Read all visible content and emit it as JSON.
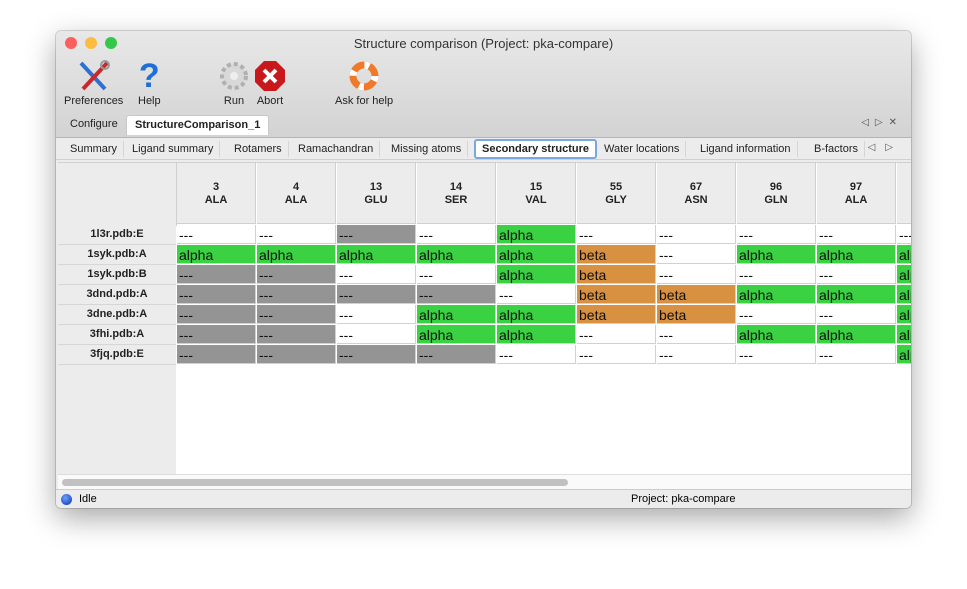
{
  "window": {
    "title": "Structure comparison (Project: pka-compare)"
  },
  "toolbar": [
    {
      "label": "Preferences",
      "icon": "tools-icon"
    },
    {
      "label": "Help",
      "icon": "help-icon"
    },
    {
      "label": "Run",
      "icon": "gear-icon"
    },
    {
      "label": "Abort",
      "icon": "abort-icon"
    },
    {
      "label": "Ask for help",
      "icon": "lifebuoy-icon"
    }
  ],
  "tabs": [
    "Configure",
    "StructureComparison_1"
  ],
  "active_tab": 1,
  "subtabs": [
    "Summary",
    "Ligand summary",
    "Rotamers",
    "Ramachandran",
    "Missing atoms",
    "Secondary structure",
    "Water locations",
    "Ligand information",
    "B-factors"
  ],
  "active_subtab": 5,
  "colors": {
    "alpha": "#3ad242",
    "beta": "#d89140",
    "missing": "#949494",
    "none": "#ffffff"
  },
  "table": {
    "columns": [
      [
        "3",
        "ALA"
      ],
      [
        "4",
        "ALA"
      ],
      [
        "13",
        "GLU"
      ],
      [
        "14",
        "SER"
      ],
      [
        "15",
        "VAL"
      ],
      [
        "55",
        "GLY"
      ],
      [
        "67",
        "ASN"
      ],
      [
        "96",
        "GLN"
      ],
      [
        "97",
        "ALA"
      ],
      [
        "",
        ""
      ]
    ],
    "rows": [
      {
        "name": "1l3r.pdb:E",
        "cells": [
          "w",
          "w",
          "g",
          "w",
          "alpha",
          "w",
          "w",
          "w",
          "w",
          "w"
        ]
      },
      {
        "name": "1syk.pdb:A",
        "cells": [
          "alpha",
          "alpha",
          "alpha",
          "alpha",
          "alpha",
          "beta",
          "w",
          "alpha",
          "alpha",
          "alpha"
        ]
      },
      {
        "name": "1syk.pdb:B",
        "cells": [
          "g",
          "g",
          "w",
          "w",
          "alpha",
          "beta",
          "w",
          "w",
          "w",
          "alpha"
        ]
      },
      {
        "name": "3dnd.pdb:A",
        "cells": [
          "g",
          "g",
          "g",
          "g",
          "w",
          "beta",
          "beta",
          "alpha",
          "alpha",
          "alpha"
        ]
      },
      {
        "name": "3dne.pdb:A",
        "cells": [
          "g",
          "g",
          "w",
          "alpha",
          "alpha",
          "beta",
          "beta",
          "w",
          "w",
          "alpha"
        ]
      },
      {
        "name": "3fhi.pdb:A",
        "cells": [
          "g",
          "g",
          "w",
          "alpha",
          "alpha",
          "w",
          "w",
          "alpha",
          "alpha",
          "alpha"
        ]
      },
      {
        "name": "3fjq.pdb:E",
        "cells": [
          "g",
          "g",
          "g",
          "g",
          "w",
          "w",
          "w",
          "w",
          "w",
          "alpha"
        ]
      }
    ],
    "empty_text": "---"
  },
  "status": {
    "state": "Idle",
    "project": "Project: pka-compare"
  }
}
